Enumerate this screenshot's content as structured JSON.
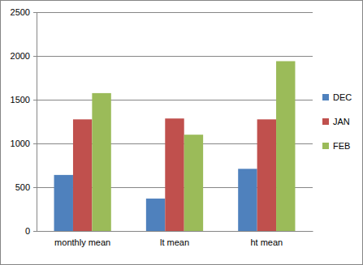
{
  "chart_data": {
    "type": "bar",
    "categories": [
      "monthly mean",
      "lt mean",
      "ht mean"
    ],
    "series": [
      {
        "name": "DEC",
        "color": "#4f81bd",
        "values": [
          640,
          370,
          710
        ]
      },
      {
        "name": "JAN",
        "color": "#c0504d",
        "values": [
          1275,
          1285,
          1275
        ]
      },
      {
        "name": "FEB",
        "color": "#9bbb59",
        "values": [
          1575,
          1100,
          1940
        ]
      }
    ],
    "ylim": [
      0,
      2500
    ],
    "yticks": [
      0,
      500,
      1000,
      1500,
      2000,
      2500
    ],
    "grid": true,
    "legend": "right"
  }
}
